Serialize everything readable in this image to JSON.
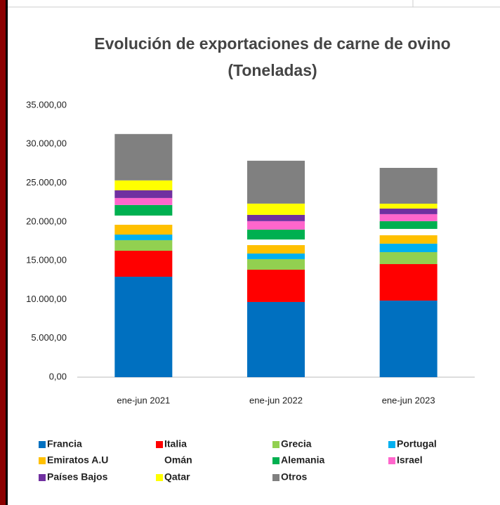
{
  "chart_data": {
    "type": "stacked_bar",
    "title": "Evolución de exportaciones de carne de ovino",
    "subtitle": "(Toneladas)",
    "categories": [
      "ene-jun 2021",
      "ene-jun 2022",
      "ene-jun 2023"
    ],
    "series": [
      {
        "name": "Francia",
        "color": "#0070c0",
        "values": [
          12930,
          9680,
          9860
        ]
      },
      {
        "name": "Italia",
        "color": "#ff0000",
        "values": [
          3350,
          4160,
          4700
        ]
      },
      {
        "name": "Grecia",
        "color": "#92d050",
        "values": [
          1360,
          1360,
          1540
        ]
      },
      {
        "name": "Portugal",
        "color": "#00b0f0",
        "values": [
          720,
          720,
          1090
        ]
      },
      {
        "name": "Emiratos A.U",
        "color": "#ffc000",
        "values": [
          1270,
          1090,
          1090
        ]
      },
      {
        "name": "Omán",
        "color": "#ffffff",
        "values": [
          1180,
          720,
          810
        ]
      },
      {
        "name": "Alemania",
        "color": "#00b050",
        "values": [
          1360,
          1270,
          1000
        ]
      },
      {
        "name": "Israel",
        "color": "#ff66cc",
        "values": [
          900,
          1090,
          900
        ]
      },
      {
        "name": "Países Bajos",
        "color": "#7030a0",
        "values": [
          1000,
          810,
          720
        ]
      },
      {
        "name": "Qatar",
        "color": "#ffff00",
        "values": [
          1270,
          1450,
          630
        ]
      },
      {
        "name": "Otros",
        "color": "#808080",
        "values": [
          5970,
          5520,
          4610
        ]
      }
    ],
    "ylim": [
      0,
      35000
    ],
    "yticks": [
      {
        "value": 0,
        "label": "0,00"
      },
      {
        "value": 5000,
        "label": "5.000,00"
      },
      {
        "value": 10000,
        "label": "10.000,00"
      },
      {
        "value": 15000,
        "label": "15.000,00"
      },
      {
        "value": 20000,
        "label": "20.000,00"
      },
      {
        "value": 25000,
        "label": "25.000,00"
      },
      {
        "value": 30000,
        "label": "30.000,00"
      },
      {
        "value": 35000,
        "label": "35.000,00"
      }
    ],
    "grid": false,
    "legend": "bottom"
  }
}
